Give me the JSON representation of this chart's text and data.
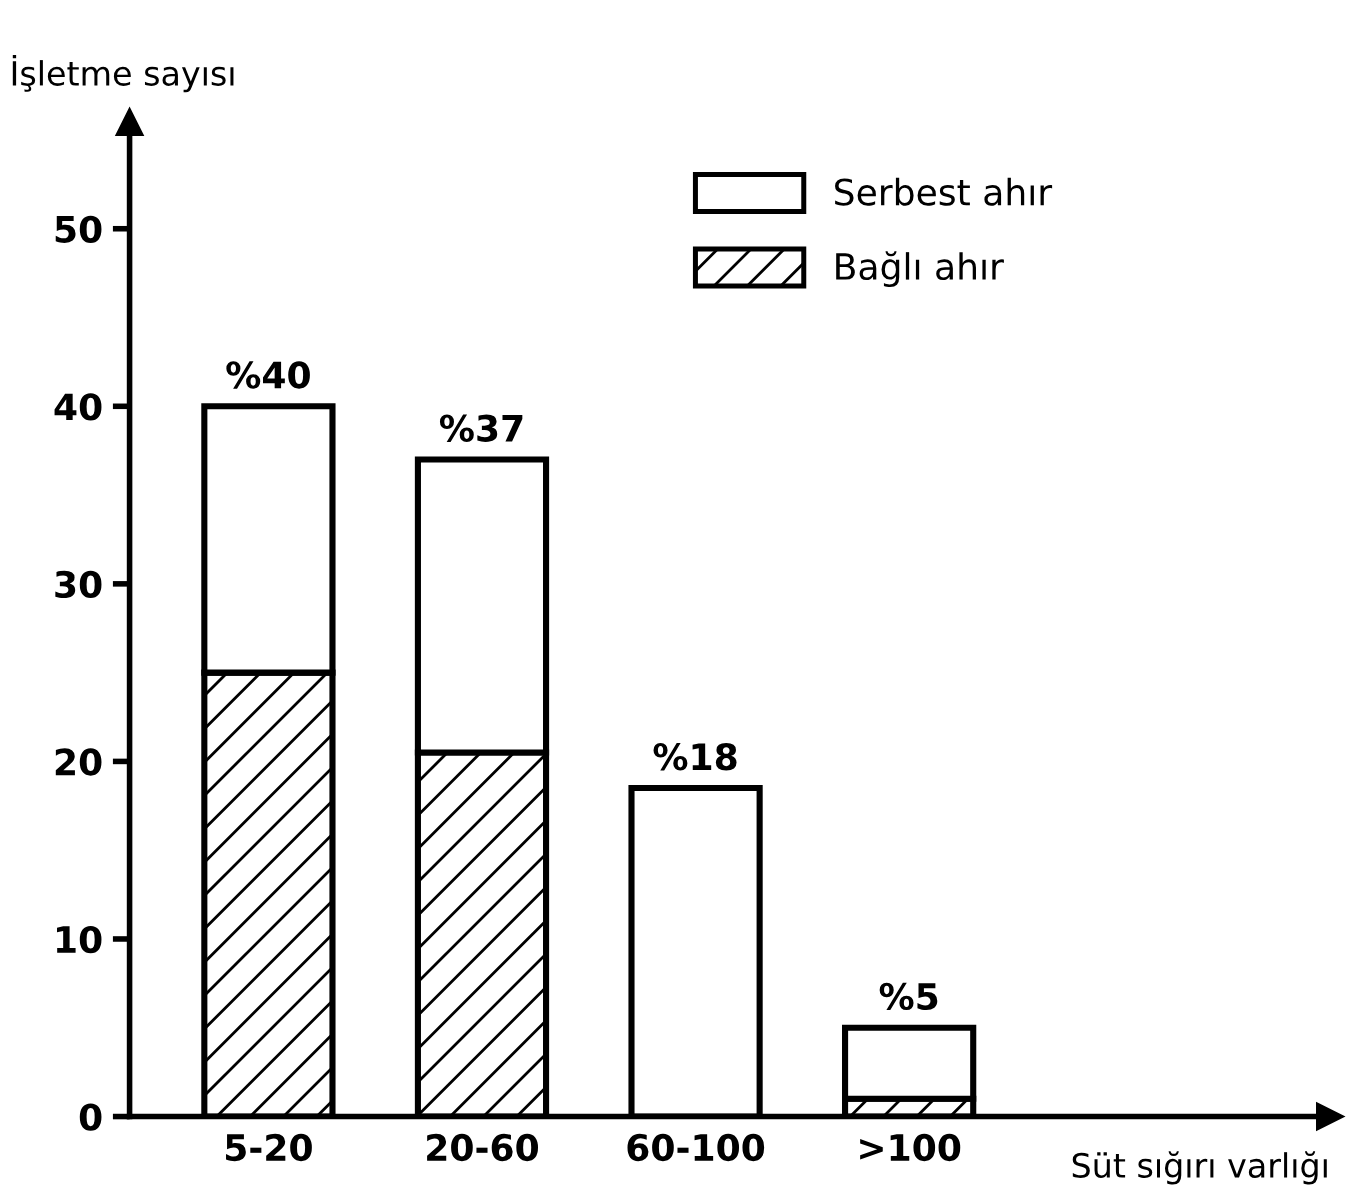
{
  "chart_data": {
    "type": "bar",
    "stacked": true,
    "xlabel": "Süt sığırı varlığı",
    "ylabel": "İşletme sayısı",
    "categories": [
      "5-20",
      "20-60",
      "60-100",
      ">100"
    ],
    "series": [
      {
        "name": "Bağlı ahır",
        "color": "#000000",
        "values": [
          25,
          20.5,
          0,
          1
        ]
      },
      {
        "name": "Serbest ahır",
        "color": "#ffffff",
        "values": [
          15,
          16.5,
          18.5,
          4
        ]
      }
    ],
    "totals": [
      "%40",
      "%37",
      "%18",
      "%5"
    ],
    "ylim": [
      0,
      56
    ],
    "yticks": [
      0,
      10,
      20,
      30,
      40,
      50
    ],
    "grid": false,
    "legend": "top"
  }
}
